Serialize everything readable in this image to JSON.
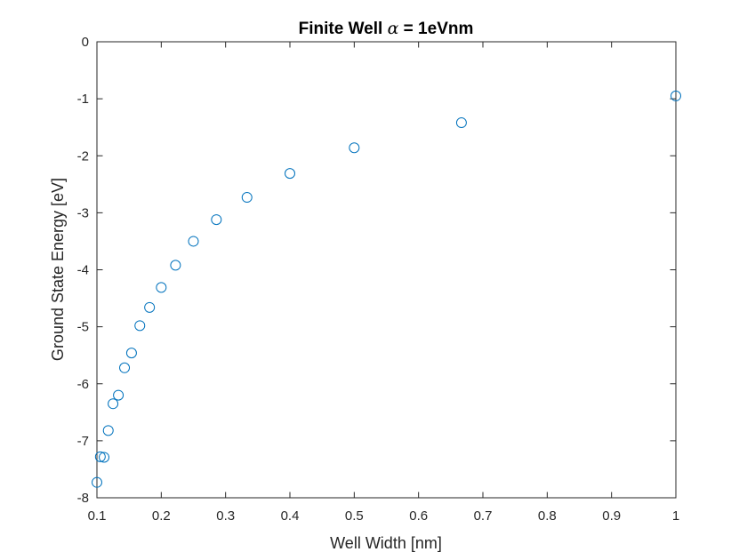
{
  "chart_data": {
    "type": "scatter",
    "title_prefix": "Finite Well ",
    "title_symbol": "α",
    "title_suffix": " = 1eVnm",
    "xlabel": "Well Width [nm]",
    "ylabel": "Ground State Energy [eV]",
    "xlim": [
      0.1,
      1
    ],
    "ylim": [
      -8,
      0
    ],
    "xticks": [
      0.1,
      0.2,
      0.3,
      0.4,
      0.5,
      0.6,
      0.7,
      0.8,
      0.9,
      1
    ],
    "xtick_labels": [
      "0.1",
      "0.2",
      "0.3",
      "0.4",
      "0.5",
      "0.6",
      "0.7",
      "0.8",
      "0.9",
      "1"
    ],
    "yticks": [
      0,
      -1,
      -2,
      -3,
      -4,
      -5,
      -6,
      -7,
      -8
    ],
    "ytick_labels": [
      "0",
      "-1",
      "-2",
      "-3",
      "-4",
      "-5",
      "-6",
      "-7",
      "-8"
    ],
    "grid": false,
    "marker": "circle-open",
    "series": [
      {
        "color": "#0072BD",
        "x": [
          0.1,
          0.1053,
          0.1111,
          0.1176,
          0.125,
          0.1333,
          0.1429,
          0.1538,
          0.1667,
          0.1818,
          0.2,
          0.2222,
          0.25,
          0.2857,
          0.3333,
          0.4,
          0.5,
          0.6667,
          1.0
        ],
        "y": [
          -7.73,
          -7.28,
          -7.29,
          -6.82,
          -6.35,
          -6.2,
          -5.72,
          -5.46,
          -4.98,
          -4.66,
          -4.31,
          -3.92,
          -3.5,
          -3.12,
          -2.73,
          -2.31,
          -1.86,
          -1.42,
          -0.95
        ]
      }
    ]
  }
}
